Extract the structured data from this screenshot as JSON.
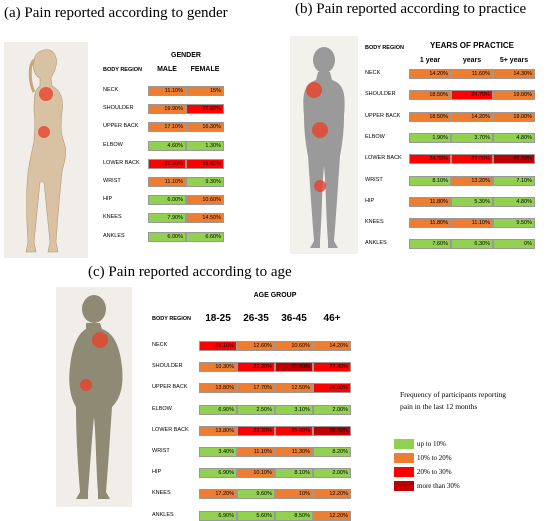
{
  "colors": {
    "green": "#92d050",
    "orange": "#ed7d31",
    "red": "#ff0000",
    "darkred": "#c00000"
  },
  "chart_data": [
    {
      "type": "table",
      "title": "(a) Pain reported according to gender",
      "group_header": "GENDER",
      "row_header": "BODY REGION",
      "columns": [
        "MALE",
        "FEMALE"
      ],
      "rows": [
        "NECK",
        "SHOULDER",
        "UPPER BACK",
        "ELBOW",
        "LOWER BACK",
        "WRIST",
        "HIP",
        "KNEES",
        "ANKLES"
      ],
      "values": [
        [
          "11.10%",
          "15%"
        ],
        [
          "19.90%",
          "21.60%"
        ],
        [
          "17.10%",
          "16.30%"
        ],
        [
          "4.60%",
          "1.30%"
        ],
        [
          "23.20%",
          "28.60%"
        ],
        [
          "11.10%",
          "9.30%"
        ],
        [
          "6.00%",
          "10.60%"
        ],
        [
          "7.90%",
          "14.50%"
        ],
        [
          "6.00%",
          "6.60%"
        ]
      ],
      "colors": [
        [
          "orange",
          "orange"
        ],
        [
          "orange",
          "red"
        ],
        [
          "orange",
          "orange"
        ],
        [
          "green",
          "green"
        ],
        [
          "red",
          "red"
        ],
        [
          "orange",
          "green"
        ],
        [
          "green",
          "orange"
        ],
        [
          "green",
          "orange"
        ],
        [
          "green",
          "green"
        ]
      ]
    },
    {
      "type": "table",
      "title": "(b) Pain reported according to practice",
      "group_header": "YEARS OF PRACTICE",
      "row_header": "BODY REGION",
      "columns": [
        "1 year",
        "years",
        "5+ years"
      ],
      "rows": [
        "NECK",
        "SHOULDER",
        "UPPER BACK",
        "ELBOW",
        "LOWER BACK",
        "WRIST",
        "HIP",
        "KNEES",
        "ANKLES"
      ],
      "values": [
        [
          "14.20%",
          "11.60%",
          "14.30%"
        ],
        [
          "18.50%",
          "24.70%",
          "19.00%"
        ],
        [
          "18.50%",
          "14.20%",
          "19.00%"
        ],
        [
          "1.90%",
          "3.70%",
          "4.80%"
        ],
        [
          "24.80%",
          "22.00%",
          "42.80%"
        ],
        [
          "8.10%",
          "13.20%",
          "7.10%"
        ],
        [
          "11.80%",
          "5.30%",
          "4.80%"
        ],
        [
          "11.80%",
          "11.10%",
          "9.50%"
        ],
        [
          "7.60%",
          "6.30%",
          "0%"
        ]
      ],
      "colors": [
        [
          "orange",
          "orange",
          "orange"
        ],
        [
          "orange",
          "red",
          "orange"
        ],
        [
          "orange",
          "orange",
          "orange"
        ],
        [
          "green",
          "green",
          "green"
        ],
        [
          "red",
          "red",
          "darkred"
        ],
        [
          "green",
          "orange",
          "green"
        ],
        [
          "orange",
          "green",
          "green"
        ],
        [
          "orange",
          "orange",
          "green"
        ],
        [
          "green",
          "green",
          "green"
        ]
      ]
    },
    {
      "type": "table",
      "title": "(c) Pain reported according to age",
      "group_header": "AGE GROUP",
      "row_header": "BODY REGION",
      "columns": [
        "18-25",
        "26-35",
        "36-45",
        "46+"
      ],
      "rows": [
        "NECK",
        "SHOULDER",
        "UPPER BACK",
        "ELBOW",
        "LOWER BACK",
        "WRIST",
        "HIP",
        "KNEES",
        "ANKLES"
      ],
      "values": [
        [
          "28.10%",
          "12.60%",
          "10.60%",
          "14.20%"
        ],
        [
          "10.30%",
          "22.20%",
          "31.90%",
          "22.40%"
        ],
        [
          "13.80%",
          "17.70%",
          "12.50%",
          "26.50%"
        ],
        [
          "6.90%",
          "2.50%",
          "3.10%",
          "2.00%"
        ],
        [
          "13.80%",
          "23.20%",
          "25.60%",
          "38.80%"
        ],
        [
          "3.40%",
          "11.10%",
          "11.30%",
          "8.20%"
        ],
        [
          "6.90%",
          "10.10%",
          "8.10%",
          "2.00%"
        ],
        [
          "17.20%",
          "9.60%",
          "10%",
          "12.20%"
        ],
        [
          "6.90%",
          "5.60%",
          "8.50%",
          "12.20%"
        ]
      ],
      "colors": [
        [
          "red",
          "orange",
          "orange",
          "orange"
        ],
        [
          "orange",
          "red",
          "darkred",
          "red"
        ],
        [
          "orange",
          "orange",
          "orange",
          "red"
        ],
        [
          "green",
          "green",
          "green",
          "green"
        ],
        [
          "orange",
          "red",
          "red",
          "darkred"
        ],
        [
          "green",
          "orange",
          "orange",
          "green"
        ],
        [
          "green",
          "orange",
          "green",
          "green"
        ],
        [
          "orange",
          "green",
          "orange",
          "orange"
        ],
        [
          "green",
          "green",
          "green",
          "orange"
        ]
      ]
    }
  ],
  "legend": {
    "title": "Frequency of participants reporting pain in the last 12 months",
    "items": [
      {
        "label": "up to 10%",
        "color": "green"
      },
      {
        "label": "10% to 20%",
        "color": "orange"
      },
      {
        "label": "20% to 30%",
        "color": "red"
      },
      {
        "label": "more than 30%",
        "color": "darkred"
      }
    ]
  }
}
